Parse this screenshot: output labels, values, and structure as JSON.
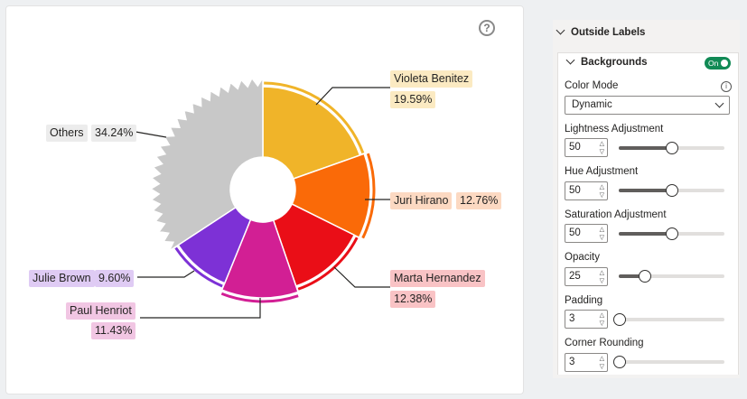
{
  "chart_data": {
    "type": "pie",
    "style": "donut",
    "slices": [
      {
        "label": "Violeta Benitez",
        "value": "19.59%",
        "pct": 19.59,
        "color": "#f0b429",
        "label_bg": "#fbeac2"
      },
      {
        "label": "Juri Hirano",
        "value": "12.76%",
        "pct": 12.76,
        "color": "#fa6a08",
        "label_bg": "#fcd9c2"
      },
      {
        "label": "Marta Hernandez",
        "value": "12.38%",
        "pct": 12.38,
        "color": "#ea0e17",
        "label_bg": "#f9c3c5"
      },
      {
        "label": "Paul Henriot",
        "value": "11.43%",
        "pct": 11.43,
        "color": "#d21f94",
        "label_bg": "#f1c6e3"
      },
      {
        "label": "Julie Brown",
        "value": "9.60%",
        "pct": 9.6,
        "color": "#7d31d6",
        "label_bg": "#dfcbf4"
      },
      {
        "label": "Others",
        "value": "34.24%",
        "pct": 34.24,
        "color": "#c8c8c8",
        "label_bg": "#ececec"
      }
    ]
  },
  "panel": {
    "section_title": "Outside Labels",
    "subsection_title": "Backgrounds",
    "toggle_label": "On",
    "color_mode_label": "Color Mode",
    "color_mode_value": "Dynamic",
    "lightness_label": "Lightness Adjustment",
    "lightness_value": "50",
    "lightness_level": 0.5,
    "hue_label": "Hue Adjustment",
    "hue_value": "50",
    "hue_level": 0.5,
    "saturation_label": "Saturation Adjustment",
    "saturation_value": "50",
    "saturation_level": 0.5,
    "opacity_label": "Opacity",
    "opacity_value": "25",
    "opacity_level": 0.25,
    "padding_label": "Padding",
    "padding_value": "3",
    "padding_level": 0.0,
    "rounding_label": "Corner Rounding",
    "rounding_value": "3",
    "rounding_level": 0.0
  }
}
